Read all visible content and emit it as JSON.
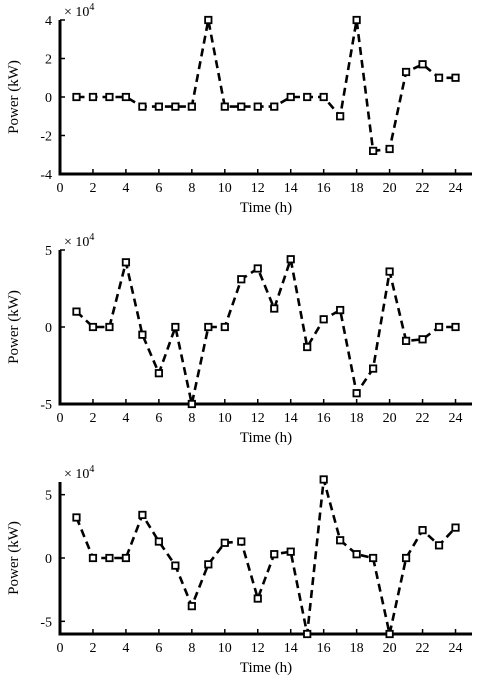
{
  "chart_data": [
    {
      "type": "line",
      "xlabel": "Time (h)",
      "ylabel": "Power (kW)",
      "scale_label": "× 10",
      "scale_exponent": "4",
      "xlim": [
        0,
        25
      ],
      "ylim": [
        -4,
        4
      ],
      "x_ticks": [
        0,
        2,
        4,
        6,
        8,
        10,
        12,
        14,
        16,
        18,
        20,
        22,
        24
      ],
      "y_ticks": [
        -4,
        -2,
        0,
        2,
        4
      ],
      "y_tick_labels": [
        "-4",
        "-2",
        "0",
        "2",
        "4"
      ],
      "grid": false,
      "series": [
        {
          "x": [
            1,
            2,
            3,
            4,
            5,
            6,
            7,
            8,
            9,
            10,
            11,
            12,
            13,
            14,
            15,
            16,
            17,
            18,
            19,
            20,
            21,
            22,
            23,
            24
          ],
          "values": [
            0,
            0,
            0,
            0,
            -0.5,
            -0.5,
            -0.5,
            -0.5,
            4,
            -0.5,
            -0.5,
            -0.5,
            -0.5,
            0,
            0,
            0,
            -1,
            4,
            -2.8,
            -2.7,
            1.3,
            1.7,
            1,
            1
          ]
        }
      ]
    },
    {
      "type": "line",
      "xlabel": "Time (h)",
      "ylabel": "Power (kW)",
      "scale_label": "× 10",
      "scale_exponent": "4",
      "xlim": [
        0,
        25
      ],
      "ylim": [
        -5,
        5
      ],
      "x_ticks": [
        0,
        2,
        4,
        6,
        8,
        10,
        12,
        14,
        16,
        18,
        20,
        22,
        24
      ],
      "y_ticks": [
        -5,
        0,
        5
      ],
      "y_tick_labels": [
        "-5",
        "0",
        "5"
      ],
      "grid": false,
      "series": [
        {
          "x": [
            1,
            2,
            3,
            4,
            5,
            6,
            7,
            8,
            9,
            10,
            11,
            12,
            13,
            14,
            15,
            16,
            17,
            18,
            19,
            20,
            21,
            22,
            23,
            24
          ],
          "values": [
            1,
            0,
            0,
            4.2,
            -0.5,
            -3,
            0,
            -5,
            0,
            0,
            3.1,
            3.8,
            1.2,
            4.4,
            -1.3,
            0.5,
            1.1,
            -4.3,
            -2.7,
            3.6,
            -0.9,
            -0.8,
            0,
            0
          ]
        }
      ]
    },
    {
      "type": "line",
      "xlabel": "Time (h)",
      "ylabel": "Power (kW)",
      "scale_label": "× 10",
      "scale_exponent": "4",
      "xlim": [
        0,
        25
      ],
      "ylim": [
        -6,
        6
      ],
      "x_ticks": [
        0,
        2,
        4,
        6,
        8,
        10,
        12,
        14,
        16,
        18,
        20,
        22,
        24
      ],
      "y_ticks": [
        -5,
        0,
        5
      ],
      "y_tick_labels": [
        "-5",
        "0",
        "5"
      ],
      "grid": false,
      "series": [
        {
          "x": [
            1,
            2,
            3,
            4,
            5,
            6,
            7,
            8,
            9,
            10,
            11,
            12,
            13,
            14,
            15,
            16,
            17,
            18,
            19,
            20,
            21,
            22,
            23,
            24
          ],
          "values": [
            3.2,
            0,
            0,
            0,
            3.4,
            1.3,
            -0.6,
            -3.8,
            -0.5,
            1.2,
            1.3,
            -3.2,
            0.3,
            0.5,
            -6,
            6.2,
            1.4,
            0.3,
            0,
            -6,
            0,
            2.2,
            1,
            2.4
          ]
        }
      ]
    }
  ]
}
